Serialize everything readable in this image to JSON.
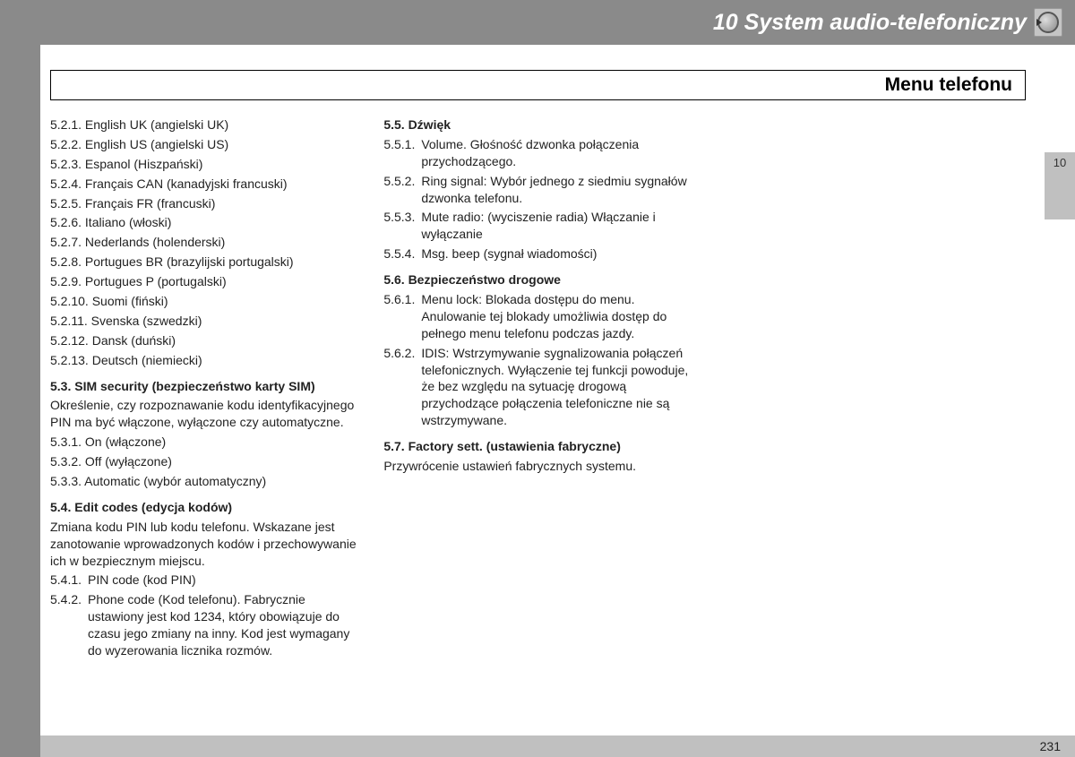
{
  "chapter": {
    "number": "10",
    "title": "System audio-telefoniczny"
  },
  "section_heading": "Menu telefonu",
  "page_number": "231",
  "tab_label": "10",
  "col1": {
    "languages": [
      "5.2.1. English UK (angielski UK)",
      "5.2.2. English US (angielski US)",
      "5.2.3. Espanol (Hiszpański)",
      "5.2.4. Français CAN (kanadyjski francuski)",
      "5.2.5. Français FR (francuski)",
      "5.2.6. Italiano (włoski)",
      "5.2.7. Nederlands (holenderski)",
      "5.2.8. Portugues BR (brazylijski portugalski)",
      "5.2.9. Portugues P (portugalski)",
      "5.2.10. Suomi (fiński)",
      "5.2.11. Svenska (szwedzki)",
      "5.2.12. Dansk (duński)",
      "5.2.13. Deutsch (niemiecki)"
    ],
    "s53_head": "5.3. SIM security (bezpieczeństwo karty SIM)",
    "s53_body": "Określenie, czy rozpoznawanie kodu identyfikacyjnego PIN ma być włączone, wyłączone czy automatyczne.",
    "s53_items": [
      "5.3.1. On (włączone)",
      "5.3.2. Off (wyłączone)",
      "5.3.3. Automatic (wybór automatyczny)"
    ],
    "s54_head": "5.4. Edit codes (edycja kodów)",
    "s54_body": "Zmiana kodu PIN lub kodu telefonu. Wskazane jest zanotowanie wprowadzonych kodów i przechowywanie ich w bezpiecznym miejscu.",
    "s54_items": [
      {
        "num": "5.4.1.",
        "txt": "PIN code (kod PIN)"
      },
      {
        "num": "5.4.2.",
        "txt": "Phone code (Kod telefonu). Fabrycznie ustawiony jest kod 1234, który obowiązuje do czasu jego zmiany na inny. Kod jest wymagany do wyzerowania licznika rozmów."
      }
    ]
  },
  "col2": {
    "s55_head": "5.5. Dźwięk",
    "s55_items": [
      {
        "num": "5.5.1.",
        "txt": "Volume. Głośność dzwonka połączenia przychodzącego."
      },
      {
        "num": "5.5.2.",
        "txt": "Ring signal: Wybór jednego z siedmiu sygnałów dzwonka telefonu."
      },
      {
        "num": "5.5.3.",
        "txt": "Mute radio: (wyciszenie radia) Włączanie i wyłączanie"
      },
      {
        "num": "5.5.4.",
        "txt": "Msg. beep (sygnał wiadomości)"
      }
    ],
    "s56_head": "5.6. Bezpieczeństwo drogowe",
    "s56_items": [
      {
        "num": "5.6.1.",
        "txt": "Menu lock: Blokada dostępu do menu. Anulowanie tej blokady umożliwia dostęp do pełnego menu telefonu podczas jazdy."
      },
      {
        "num": "5.6.2.",
        "txt": "IDIS: Wstrzymywanie sygnalizowania połączeń telefonicznych. Wyłączenie tej funkcji powoduje, że bez względu na sytuację drogową przychodzące połączenia telefoniczne nie są wstrzymywane."
      }
    ],
    "s57_head": "5.7. Factory sett. (ustawienia fabryczne)",
    "s57_body": "Przywrócenie ustawień fabrycznych systemu."
  }
}
